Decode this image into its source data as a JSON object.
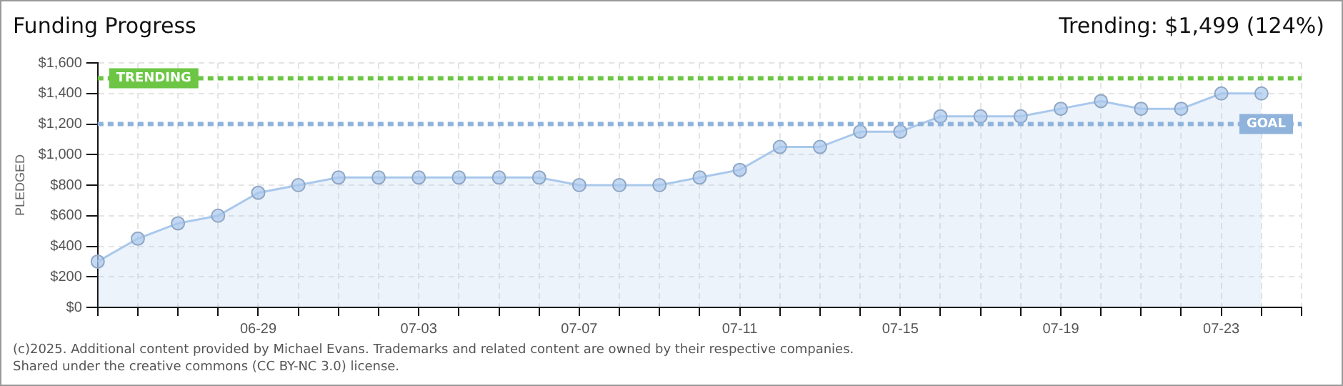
{
  "chart_data": {
    "type": "area",
    "title": "Funding Progress",
    "ylabel": "PLEDGED",
    "categories": [
      null,
      null,
      null,
      null,
      "06-29",
      null,
      null,
      null,
      "07-03",
      null,
      null,
      null,
      "07-07",
      null,
      null,
      null,
      "07-11",
      null,
      null,
      null,
      "07-15",
      null,
      null,
      null,
      "07-19",
      null,
      null,
      null,
      "07-23",
      null,
      null
    ],
    "series": [
      {
        "color": "#a9c8ec",
        "values": [
          300,
          450,
          550,
          600,
          750,
          800,
          850,
          850,
          850,
          850,
          850,
          850,
          800,
          800,
          800,
          850,
          900,
          1050,
          1050,
          1150,
          1150,
          1250,
          1250,
          1250,
          1300,
          1350,
          1300,
          1300,
          1400,
          1400,
          null
        ]
      }
    ],
    "ylim": [
      0,
      1600
    ],
    "yticks": [
      {
        "value": 0,
        "label": "$0"
      },
      {
        "value": 200,
        "label": "$200"
      },
      {
        "value": 400,
        "label": "$400"
      },
      {
        "value": 600,
        "label": "$600"
      },
      {
        "value": 800,
        "label": "$800"
      },
      {
        "value": 1000,
        "label": "$1,000"
      },
      {
        "value": 1200,
        "label": "$1,200"
      },
      {
        "value": 1400,
        "label": "$1,400"
      },
      {
        "value": 1600,
        "label": "$1,600"
      }
    ],
    "ref_lines": [
      {
        "axis": "y",
        "value": 1499,
        "label": "TRENDING",
        "color": "#6cc644",
        "line_style": "dashed"
      },
      {
        "axis": "y",
        "value": 1200,
        "label": "GOAL",
        "color": "#8fb3db",
        "line_style": "dashed"
      }
    ],
    "annotations": [
      "Trending: $1,499 (124%)",
      "(c)2025. Additional content provided by Michael Evans. Trademarks and related content are owned by their respective companies.",
      "Shared under the creative commons (CC BY-NC 3.0) license."
    ],
    "grid": true,
    "legend": false,
    "marker": "circle"
  }
}
